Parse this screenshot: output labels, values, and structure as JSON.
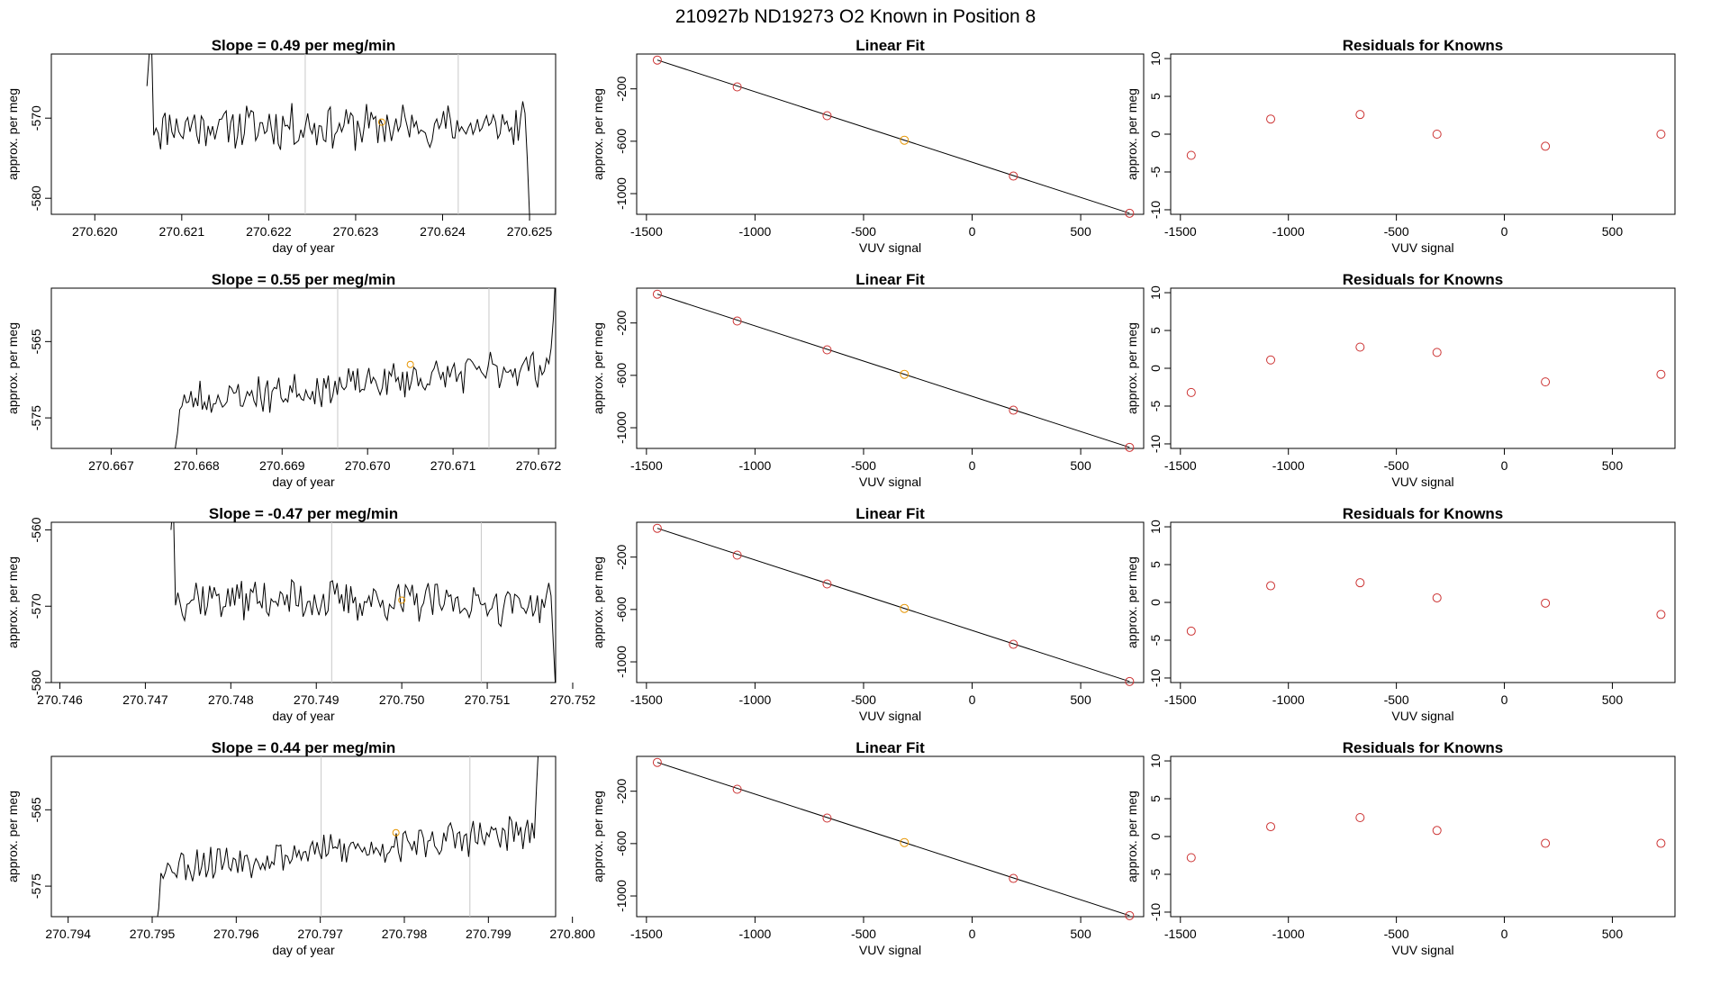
{
  "figure_title": "210927b     ND19273    O2 Known in Position  8",
  "colors": {
    "known_point": "#cc3333",
    "highlight_point": "#e69500",
    "trace": "#000000",
    "window_line": "#c8c8c8"
  },
  "chart_data": [
    {
      "type": "line",
      "row": 1,
      "title": "Slope =  0.49  per meg/min",
      "xlabel": "day of year",
      "ylabel": "approx. per meg",
      "xlim": [
        270.6195,
        270.6253
      ],
      "ylim": [
        -582,
        -562
      ],
      "xticks": [
        "270.620",
        "270.621",
        "270.622",
        "270.623",
        "270.624",
        "270.625"
      ],
      "yticks": [
        "-580",
        "-570"
      ],
      "ytick_values": [
        -580,
        -570
      ],
      "x_start": 270.6206,
      "x_end": 270.625,
      "baseline": -571,
      "noise": 2.2,
      "trend": 0.0,
      "lead_in": [
        -566,
        -562,
        -560
      ],
      "tail": [
        -575,
        -582
      ],
      "window": [
        270.62242,
        270.62418
      ],
      "highlight": {
        "x": 270.6233,
        "y": -570.5
      },
      "seed": 11
    },
    {
      "type": "line",
      "row": 2,
      "title": "Slope =  0.55  per meg/min",
      "xlabel": "day of year",
      "ylabel": "approx. per meg",
      "xlim": [
        270.6663,
        270.6722
      ],
      "ylim": [
        -579,
        -558
      ],
      "xticks": [
        "270.667",
        "270.668",
        "270.669",
        "270.670",
        "270.671",
        "270.672"
      ],
      "yticks": [
        "-565",
        "-575"
      ],
      "ytick_values": [
        -565,
        -575
      ],
      "x_start": 270.66775,
      "x_end": 270.6722,
      "baseline": -572,
      "noise": 2.0,
      "trend": 5.0,
      "lead_in": [
        -579,
        -577
      ],
      "tail": [
        -562,
        -556
      ],
      "window": [
        270.66965,
        270.67142
      ],
      "highlight": {
        "x": 270.6705,
        "y": -568
      },
      "seed": 23
    },
    {
      "type": "line",
      "row": 3,
      "title": "Slope =  -0.47  per meg/min",
      "xlabel": "day of year",
      "ylabel": "approx. per meg",
      "xlim": [
        270.7459,
        270.7518
      ],
      "ylim": [
        -580,
        -559
      ],
      "xticks": [
        "270.746",
        "270.747",
        "270.748",
        "270.749",
        "270.750",
        "270.751",
        "270.752"
      ],
      "yticks": [
        "-580",
        "-570",
        "-560"
      ],
      "ytick_values": [
        -580,
        -570,
        -560
      ],
      "x_start": 270.7473,
      "x_end": 270.7518,
      "baseline": -569,
      "noise": 2.2,
      "trend": -1.0,
      "lead_in": [
        -560,
        -556
      ],
      "tail": [
        -575,
        -581
      ],
      "window": [
        270.74918,
        270.75093
      ],
      "highlight": {
        "x": 270.75,
        "y": -569.2
      },
      "seed": 37
    },
    {
      "type": "line",
      "row": 4,
      "title": "Slope =  0.44  per meg/min",
      "xlabel": "day of year",
      "ylabel": "approx. per meg",
      "xlim": [
        270.7938,
        270.7998
      ],
      "ylim": [
        -579,
        -558
      ],
      "xticks": [
        "270.794",
        "270.795",
        "270.796",
        "270.797",
        "270.798",
        "270.799",
        "270.800"
      ],
      "yticks": [
        "-565",
        "-575"
      ],
      "ytick_values": [
        -565,
        -575
      ],
      "x_start": 270.79505,
      "x_end": 270.7996,
      "baseline": -571.5,
      "noise": 2.0,
      "trend": 4.5,
      "lead_in": [
        -580,
        -578
      ],
      "tail": [
        -562,
        -556
      ],
      "window": [
        270.79701,
        270.79878
      ],
      "highlight": {
        "x": 270.7979,
        "y": -568
      },
      "seed": 53
    },
    {
      "type": "scatter",
      "row": 1,
      "title": "Linear Fit",
      "xlabel": "VUV signal",
      "ylabel": "approx. per meg",
      "xlim": [
        -1545,
        790
      ],
      "ylim": [
        -1158,
        66
      ],
      "xticks": [
        "-1500",
        "-1000",
        "-500",
        "0",
        "500"
      ],
      "xtick_values": [
        -1500,
        -1000,
        -500,
        0,
        500
      ],
      "yticks": [
        "-200",
        "-600",
        "-1000"
      ],
      "ytick_values": [
        -200,
        -600,
        -1000
      ],
      "fit": {
        "x": [
          -1450,
          725
        ],
        "y": 0
      },
      "points": [
        {
          "x": -1450,
          "y": 20
        },
        {
          "x": -1082,
          "y": -185
        },
        {
          "x": -668,
          "y": -405
        },
        {
          "x": -312,
          "y": -592
        },
        {
          "x": 190,
          "y": -866
        },
        {
          "x": 725,
          "y": -1150
        }
      ],
      "highlight_index": 3
    },
    {
      "type": "scatter",
      "row": 2,
      "title": "Linear Fit",
      "xlabel": "VUV signal",
      "ylabel": "approx. per meg",
      "xlim": [
        -1545,
        790
      ],
      "ylim": [
        -1158,
        66
      ],
      "xticks": [
        "-1500",
        "-1000",
        "-500",
        "0",
        "500"
      ],
      "xtick_values": [
        -1500,
        -1000,
        -500,
        0,
        500
      ],
      "yticks": [
        "-200",
        "-600",
        "-1000"
      ],
      "ytick_values": [
        -200,
        -600,
        -1000
      ],
      "points": [
        {
          "x": -1450,
          "y": 20
        },
        {
          "x": -1082,
          "y": -185
        },
        {
          "x": -668,
          "y": -405
        },
        {
          "x": -312,
          "y": -592
        },
        {
          "x": 190,
          "y": -866
        },
        {
          "x": 725,
          "y": -1150
        }
      ],
      "highlight_index": 3
    },
    {
      "type": "scatter",
      "row": 3,
      "title": "Linear Fit",
      "xlabel": "VUV signal",
      "ylabel": "approx. per meg",
      "xlim": [
        -1545,
        790
      ],
      "ylim": [
        -1158,
        66
      ],
      "xticks": [
        "-1500",
        "-1000",
        "-500",
        "0",
        "500"
      ],
      "xtick_values": [
        -1500,
        -1000,
        -500,
        0,
        500
      ],
      "yticks": [
        "-200",
        "-600",
        "-1000"
      ],
      "ytick_values": [
        -200,
        -600,
        -1000
      ],
      "points": [
        {
          "x": -1450,
          "y": 20
        },
        {
          "x": -1082,
          "y": -185
        },
        {
          "x": -668,
          "y": -405
        },
        {
          "x": -312,
          "y": -592
        },
        {
          "x": 190,
          "y": -866
        },
        {
          "x": 725,
          "y": -1150
        }
      ],
      "highlight_index": 3
    },
    {
      "type": "scatter",
      "row": 4,
      "title": "Linear Fit",
      "xlabel": "VUV signal",
      "ylabel": "approx. per meg",
      "xlim": [
        -1545,
        790
      ],
      "ylim": [
        -1158,
        66
      ],
      "xticks": [
        "-1500",
        "-1000",
        "-500",
        "0",
        "500"
      ],
      "xtick_values": [
        -1500,
        -1000,
        -500,
        0,
        500
      ],
      "yticks": [
        "-200",
        "-600",
        "-1000"
      ],
      "ytick_values": [
        -200,
        -600,
        -1000
      ],
      "points": [
        {
          "x": -1450,
          "y": 20
        },
        {
          "x": -1082,
          "y": -185
        },
        {
          "x": -668,
          "y": -405
        },
        {
          "x": -312,
          "y": -592
        },
        {
          "x": 190,
          "y": -866
        },
        {
          "x": 725,
          "y": -1150
        }
      ],
      "highlight_index": 3
    },
    {
      "type": "scatter",
      "row": 1,
      "title": "Residuals for Knowns",
      "xlabel": "VUV signal",
      "ylabel": "approx. per meg",
      "xlim": [
        -1545,
        790
      ],
      "ylim": [
        -10.6,
        10.6
      ],
      "xticks": [
        "-1500",
        "-1000",
        "-500",
        "0",
        "500"
      ],
      "xtick_values": [
        -1500,
        -1000,
        -500,
        0,
        500
      ],
      "yticks": [
        "-10",
        "-5",
        "0",
        "5",
        "10"
      ],
      "ytick_values": [
        -10,
        -5,
        0,
        5,
        10
      ],
      "points": [
        {
          "x": -1450,
          "y": -2.8
        },
        {
          "x": -1082,
          "y": 2.0
        },
        {
          "x": -668,
          "y": 2.6
        },
        {
          "x": -312,
          "y": 0.0
        },
        {
          "x": 190,
          "y": -1.6
        },
        {
          "x": 725,
          "y": 0.0
        }
      ]
    },
    {
      "type": "scatter",
      "row": 2,
      "title": "Residuals for Knowns",
      "xlabel": "VUV signal",
      "ylabel": "approx. per meg",
      "xlim": [
        -1545,
        790
      ],
      "ylim": [
        -10.6,
        10.6
      ],
      "xticks": [
        "-1500",
        "-1000",
        "-500",
        "0",
        "500"
      ],
      "xtick_values": [
        -1500,
        -1000,
        -500,
        0,
        500
      ],
      "yticks": [
        "-10",
        "-5",
        "0",
        "5",
        "10"
      ],
      "ytick_values": [
        -10,
        -5,
        0,
        5,
        10
      ],
      "points": [
        {
          "x": -1450,
          "y": -3.2
        },
        {
          "x": -1082,
          "y": 1.1
        },
        {
          "x": -668,
          "y": 2.8
        },
        {
          "x": -312,
          "y": 2.1
        },
        {
          "x": 190,
          "y": -1.8
        },
        {
          "x": 725,
          "y": -0.8
        }
      ]
    },
    {
      "type": "scatter",
      "row": 3,
      "title": "Residuals for Knowns",
      "xlabel": "VUV signal",
      "ylabel": "approx. per meg",
      "xlim": [
        -1545,
        790
      ],
      "ylim": [
        -10.6,
        10.6
      ],
      "xticks": [
        "-1500",
        "-1000",
        "-500",
        "0",
        "500"
      ],
      "xtick_values": [
        -1500,
        -1000,
        -500,
        0,
        500
      ],
      "yticks": [
        "-10",
        "-5",
        "0",
        "5",
        "10"
      ],
      "ytick_values": [
        -10,
        -5,
        0,
        5,
        10
      ],
      "points": [
        {
          "x": -1450,
          "y": -3.8
        },
        {
          "x": -1082,
          "y": 2.2
        },
        {
          "x": -668,
          "y": 2.6
        },
        {
          "x": -312,
          "y": 0.6
        },
        {
          "x": 190,
          "y": -0.1
        },
        {
          "x": 725,
          "y": -1.6
        }
      ]
    },
    {
      "type": "scatter",
      "row": 4,
      "title": "Residuals for Knowns",
      "xlabel": "VUV signal",
      "ylabel": "approx. per meg",
      "xlim": [
        -1545,
        790
      ],
      "ylim": [
        -10.6,
        10.6
      ],
      "xticks": [
        "-1500",
        "-1000",
        "-500",
        "0",
        "500"
      ],
      "xtick_values": [
        -1500,
        -1000,
        -500,
        0,
        500
      ],
      "yticks": [
        "-10",
        "-5",
        "0",
        "5",
        "10"
      ],
      "ytick_values": [
        -10,
        -5,
        0,
        5,
        10
      ],
      "points": [
        {
          "x": -1450,
          "y": -2.8
        },
        {
          "x": -1082,
          "y": 1.3
        },
        {
          "x": -668,
          "y": 2.5
        },
        {
          "x": -312,
          "y": 0.8
        },
        {
          "x": 190,
          "y": -0.9
        },
        {
          "x": 725,
          "y": -0.9
        }
      ]
    }
  ]
}
